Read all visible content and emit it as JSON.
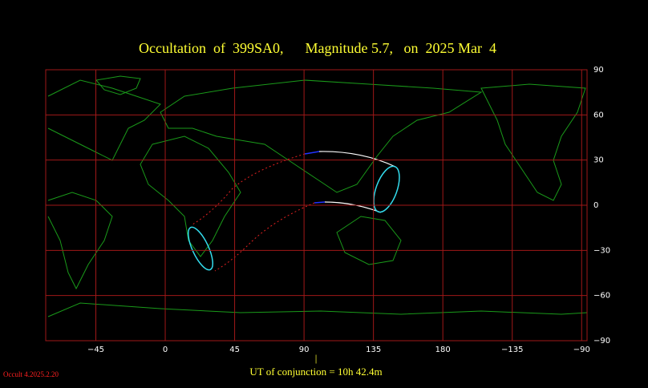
{
  "chart_data": {
    "type": "map",
    "title": "Occultation  of  399SA0,      Magnitude 5.7,   on  2025 Mar  4",
    "xlim": [
      -77.5,
      273.5
    ],
    "xticks": [
      {
        "value": -45,
        "label": "−45"
      },
      0,
      45,
      90,
      135,
      180,
      {
        "value": 225,
        "label": "−135"
      },
      {
        "value": 270,
        "label": "−90"
      }
    ],
    "ylim": [
      -90,
      90
    ],
    "yticks": [
      90,
      60,
      30,
      0,
      {
        "value": -30,
        "label": "−30"
      },
      {
        "value": -60,
        "label": "−60"
      },
      {
        "value": -90,
        "label": "−90"
      }
    ],
    "grid": true,
    "grid_color": "#a01818",
    "conjunction_marker": "|",
    "conjunction_label": "UT of conjunction = 10h 42.4m",
    "version": "Occult 4.2025.2.20"
  }
}
